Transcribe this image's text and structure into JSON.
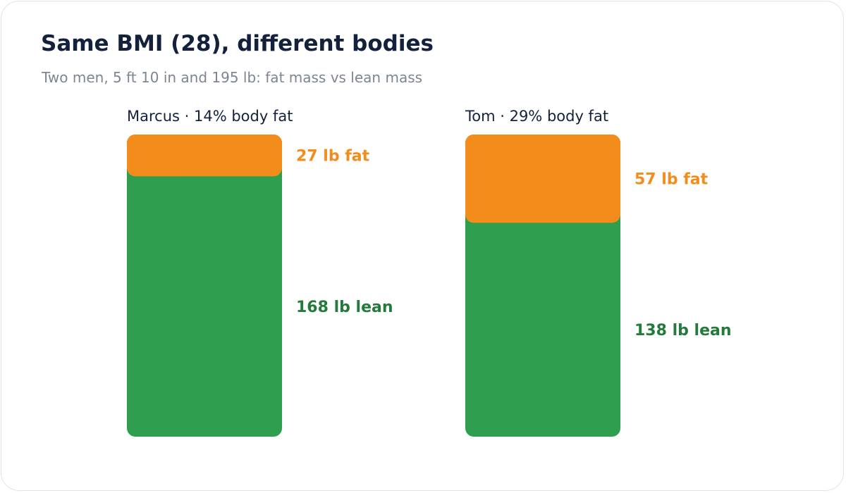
{
  "title": "Same BMI (28), different bodies",
  "subtitle": "Two men, 5 ft 10 in and 195 lb: fat mass vs lean mass",
  "chart_data": {
    "type": "bar",
    "stacked": true,
    "categories": [
      "Marcus · 14% body fat",
      "Tom · 29% body fat"
    ],
    "series": [
      {
        "name": "fat",
        "values": [
          27,
          57
        ],
        "labels": [
          "27 lb fat",
          "57 lb fat"
        ],
        "color": "#f28c1b"
      },
      {
        "name": "lean",
        "values": [
          168,
          138
        ],
        "labels": [
          "168 lb lean",
          "138 lb lean"
        ],
        "color": "#2e9e4f"
      }
    ],
    "label_colors": {
      "fat": "#f28c1b",
      "lean": "#237a3b"
    },
    "total": 195,
    "grid": false,
    "legend": "none"
  }
}
